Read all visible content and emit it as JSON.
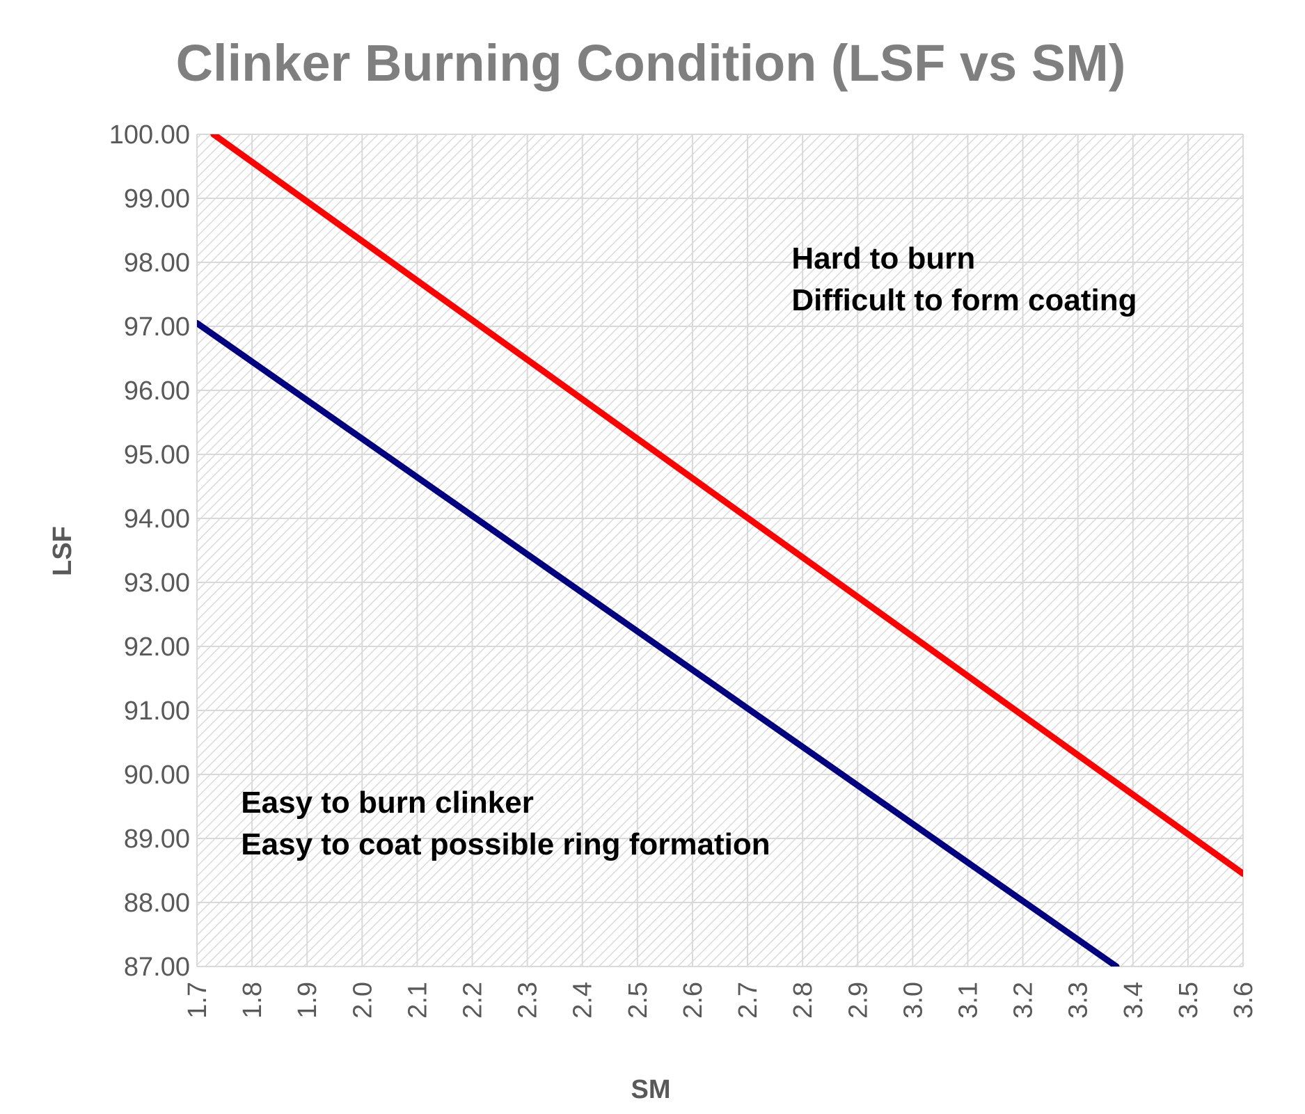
{
  "chart_data": {
    "type": "line",
    "title": "Clinker Burning Condition (LSF vs SM)",
    "xlabel": "SM",
    "ylabel": "LSF",
    "xlim": [
      1.7,
      3.6
    ],
    "ylim": [
      87.0,
      100.0
    ],
    "x_ticks": [
      "1.7",
      "1.8",
      "1.9",
      "2.0",
      "2.1",
      "2.2",
      "2.3",
      "2.4",
      "2.5",
      "2.6",
      "2.7",
      "2.8",
      "2.9",
      "3.0",
      "3.1",
      "3.2",
      "3.3",
      "3.4",
      "3.5",
      "3.6"
    ],
    "y_ticks": [
      "100.00",
      "99.00",
      "98.00",
      "97.00",
      "96.00",
      "95.00",
      "94.00",
      "93.00",
      "92.00",
      "91.00",
      "90.00",
      "89.00",
      "88.00",
      "87.00"
    ],
    "grid": true,
    "plot_area_fill": "diagonal hatch",
    "series": [
      {
        "color": "#ff0000",
        "points": [
          [
            1.73,
            100.0
          ],
          [
            3.6,
            88.45
          ]
        ]
      },
      {
        "color": "#000080",
        "points": [
          [
            1.7,
            97.05
          ],
          [
            3.37,
            87.0
          ]
        ]
      }
    ],
    "annotations": [
      {
        "lines": [
          "Hard to burn",
          "Difficult to form coating"
        ],
        "x": 2.78,
        "y": 97.9
      },
      {
        "lines": [
          "Easy to burn clinker",
          "Easy to coat possible ring formation"
        ],
        "x": 1.78,
        "y": 89.4
      }
    ]
  }
}
